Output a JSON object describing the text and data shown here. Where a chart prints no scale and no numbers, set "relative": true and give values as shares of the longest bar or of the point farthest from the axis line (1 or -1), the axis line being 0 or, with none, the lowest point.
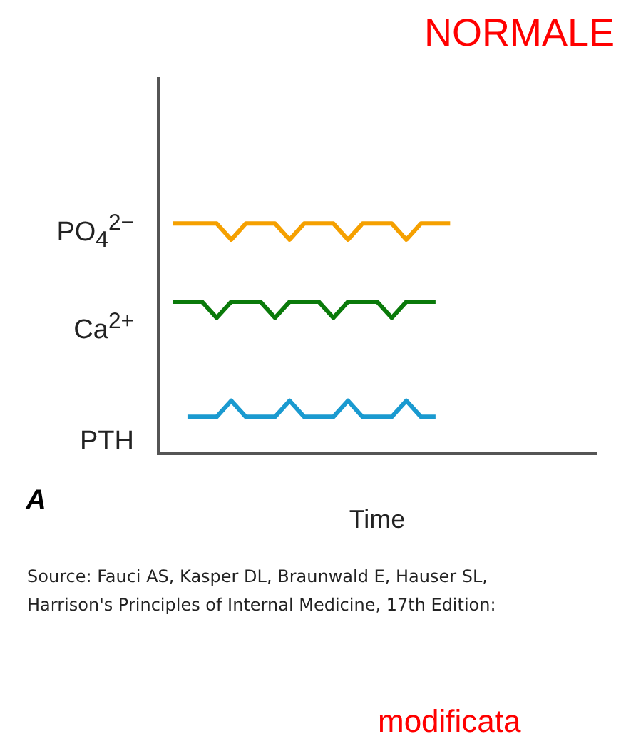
{
  "chart_data": {
    "type": "line",
    "title": "NORMALE",
    "xlabel": "Time",
    "relative": true,
    "legend": false,
    "categories": [
      null,
      null,
      null,
      null,
      null,
      null,
      null,
      null,
      null,
      null,
      null,
      null,
      null,
      null,
      null,
      null,
      null,
      null,
      null,
      null,
      null,
      null,
      null,
      null,
      null,
      null,
      null,
      null,
      null,
      null,
      null
    ],
    "series": [
      {
        "name": "PO$_{4}$$^{2−}$",
        "color": "#f5a000",
        "values": [
          null,
          1,
          1,
          1,
          1,
          0.93,
          1,
          1,
          1,
          0.93,
          1,
          1,
          1,
          0.93,
          1,
          1,
          1,
          0.93,
          1,
          1,
          1,
          null,
          null,
          null,
          null,
          null,
          null,
          null,
          null,
          null,
          null
        ]
      },
      {
        "name": "Ca$^{2+}$",
        "color": "#0a7a0a",
        "values": [
          null,
          0.66,
          0.66,
          0.66,
          0.59,
          0.66,
          0.66,
          0.66,
          0.59,
          0.66,
          0.66,
          0.66,
          0.59,
          0.66,
          0.66,
          0.66,
          0.59,
          0.66,
          0.66,
          0.66,
          null,
          null,
          null,
          null,
          null,
          null,
          null,
          null,
          null,
          null,
          null
        ]
      },
      {
        "name": "PTH",
        "color": "#1a9ad0",
        "values": [
          null,
          null,
          0.16,
          0.16,
          0.16,
          0.23,
          0.16,
          0.16,
          0.16,
          0.23,
          0.16,
          0.16,
          0.16,
          0.23,
          0.16,
          0.16,
          0.16,
          0.23,
          0.16,
          0.16,
          null,
          null,
          null,
          null,
          null,
          null,
          null,
          null,
          null,
          null,
          null
        ]
      }
    ],
    "annotations": [
      "A",
      "Source: Fauci AS, Kasper DL, Braunwald E, Hauser SL,",
      "Harrison's Principles of Internal Medicine, 17th Edition:",
      "modificata"
    ]
  }
}
